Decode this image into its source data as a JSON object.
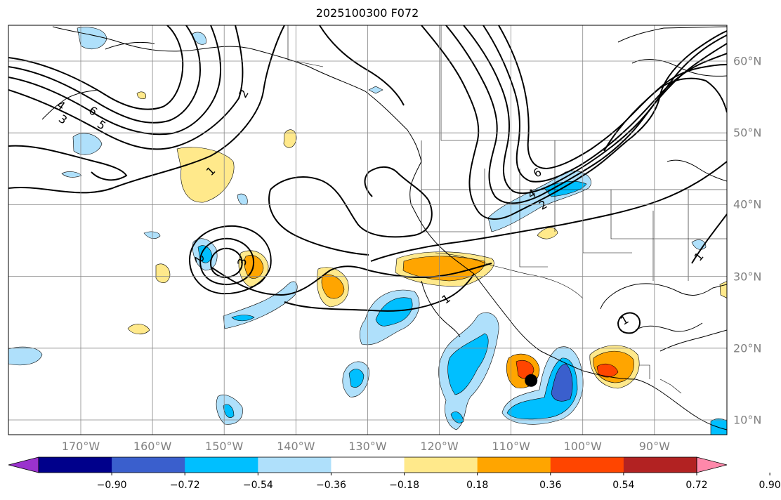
{
  "title": "2025100300 F072",
  "map": {
    "projection": "plate-carree",
    "extent_lon": [
      -180,
      -80
    ],
    "extent_lat": [
      8,
      65
    ],
    "gridlines": true,
    "longitude_labels": [
      "170°W",
      "160°W",
      "150°W",
      "140°W",
      "130°W",
      "120°W",
      "110°W",
      "100°W",
      "90°W"
    ],
    "latitude_labels": [
      "60°N",
      "50°N",
      "40°N",
      "30°N",
      "20°N",
      "10°N"
    ],
    "contour_labels": [
      "1",
      "2",
      "3",
      "4",
      "5",
      "6"
    ],
    "storm_marker": {
      "lon": -107.2,
      "lat": 15.5,
      "color": "#000000"
    }
  },
  "colorbar": {
    "orientation": "horizontal",
    "extend": "both",
    "tick_labels": [
      "−0.90",
      "−0.72",
      "−0.54",
      "−0.36",
      "−0.18",
      "0.18",
      "0.36",
      "0.54",
      "0.72",
      "0.90"
    ],
    "colors": [
      "#9a32cd",
      "#00008b",
      "#3a5fcd",
      "#00bfff",
      "#afe0fb",
      "#ffffff",
      "#ffe98b",
      "#ffa500",
      "#ff4500",
      "#b22222",
      "#ff88aa"
    ]
  }
}
